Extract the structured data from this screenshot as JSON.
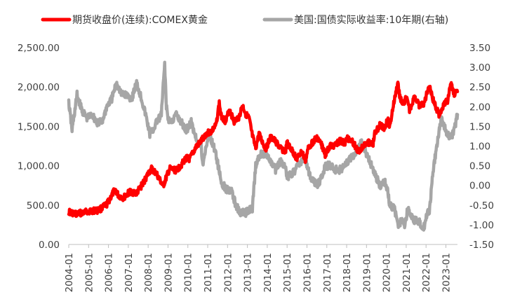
{
  "chart_data": {
    "type": "line",
    "grid": false,
    "legend_position": "top",
    "x_ticks": [
      "2004-01",
      "2005-01",
      "2006-01",
      "2007-01",
      "2008-01",
      "2009-01",
      "2010-01",
      "2011-01",
      "2012-01",
      "2013-01",
      "2014-01",
      "2015-01",
      "2016-01",
      "2017-01",
      "2018-01",
      "2019-01",
      "2020-01",
      "2021-01",
      "2022-01",
      "2023-01"
    ],
    "x_range": [
      "2004-01",
      "2023-08"
    ],
    "y_left": {
      "ylim": [
        0,
        2500
      ],
      "ticks": [
        "0.00",
        "500.00",
        "1,000.00",
        "1,500.00",
        "2,000.00",
        "2,500.00"
      ]
    },
    "y_right": {
      "ylim": [
        -1.5,
        3.5
      ],
      "ticks": [
        "-1.50",
        "-1.00",
        "-0.50",
        "0.00",
        "0.50",
        "1.00",
        "1.50",
        "2.00",
        "2.50",
        "3.00",
        "3.50"
      ]
    },
    "series": [
      {
        "name": "期货收盘价(连续):COMEX黄金",
        "axis": "left",
        "color": "#ff0000",
        "points": [
          [
            "2004-01",
            415
          ],
          [
            "2004-05",
            385
          ],
          [
            "2004-09",
            405
          ],
          [
            "2005-01",
            425
          ],
          [
            "2005-06",
            430
          ],
          [
            "2005-09",
            460
          ],
          [
            "2005-12",
            510
          ],
          [
            "2006-05",
            700
          ],
          [
            "2006-07",
            620
          ],
          [
            "2006-10",
            590
          ],
          [
            "2007-02",
            670
          ],
          [
            "2007-06",
            650
          ],
          [
            "2007-10",
            780
          ],
          [
            "2008-01",
            900
          ],
          [
            "2008-03",
            960
          ],
          [
            "2008-06",
            900
          ],
          [
            "2008-10",
            740
          ],
          [
            "2009-02",
            960
          ],
          [
            "2009-06",
            940
          ],
          [
            "2009-09",
            1010
          ],
          [
            "2009-12",
            1100
          ],
          [
            "2010-02",
            1080
          ],
          [
            "2010-06",
            1240
          ],
          [
            "2010-09",
            1310
          ],
          [
            "2010-12",
            1410
          ],
          [
            "2011-03",
            1430
          ],
          [
            "2011-06",
            1510
          ],
          [
            "2011-08",
            1800
          ],
          [
            "2011-09",
            1640
          ],
          [
            "2011-12",
            1560
          ],
          [
            "2012-02",
            1720
          ],
          [
            "2012-05",
            1560
          ],
          [
            "2012-08",
            1620
          ],
          [
            "2012-10",
            1770
          ],
          [
            "2012-12",
            1660
          ],
          [
            "2013-02",
            1600
          ],
          [
            "2013-04",
            1380
          ],
          [
            "2013-06",
            1220
          ],
          [
            "2013-08",
            1400
          ],
          [
            "2013-12",
            1210
          ],
          [
            "2014-03",
            1360
          ],
          [
            "2014-06",
            1310
          ],
          [
            "2014-09",
            1220
          ],
          [
            "2014-12",
            1180
          ],
          [
            "2015-01",
            1290
          ],
          [
            "2015-04",
            1190
          ],
          [
            "2015-07",
            1090
          ],
          [
            "2015-10",
            1180
          ],
          [
            "2015-12",
            1060
          ],
          [
            "2016-02",
            1240
          ],
          [
            "2016-07",
            1360
          ],
          [
            "2016-10",
            1260
          ],
          [
            "2016-12",
            1140
          ],
          [
            "2017-03",
            1250
          ],
          [
            "2017-06",
            1260
          ],
          [
            "2017-09",
            1320
          ],
          [
            "2017-12",
            1280
          ],
          [
            "2018-01",
            1350
          ],
          [
            "2018-04",
            1330
          ],
          [
            "2018-08",
            1180
          ],
          [
            "2018-10",
            1230
          ],
          [
            "2019-01",
            1300
          ],
          [
            "2019-05",
            1280
          ],
          [
            "2019-06",
            1410
          ],
          [
            "2019-09",
            1510
          ],
          [
            "2019-12",
            1480
          ],
          [
            "2020-02",
            1600
          ],
          [
            "2020-03",
            1480
          ],
          [
            "2020-05",
            1740
          ],
          [
            "2020-08",
            2060
          ],
          [
            "2020-09",
            1890
          ],
          [
            "2020-11",
            1770
          ],
          [
            "2021-01",
            1870
          ],
          [
            "2021-03",
            1700
          ],
          [
            "2021-06",
            1880
          ],
          [
            "2021-09",
            1750
          ],
          [
            "2021-12",
            1800
          ],
          [
            "2022-03",
            2040
          ],
          [
            "2022-05",
            1850
          ],
          [
            "2022-09",
            1640
          ],
          [
            "2022-11",
            1750
          ],
          [
            "2023-02",
            1830
          ],
          [
            "2023-04",
            2040
          ],
          [
            "2023-06",
            1920
          ],
          [
            "2023-08",
            1940
          ]
        ]
      },
      {
        "name": "美国:国债实际收益率:10年期(右轴)",
        "axis": "right",
        "color": "#a6a6a6",
        "points": [
          [
            "2004-01",
            2.1
          ],
          [
            "2004-03",
            1.4
          ],
          [
            "2004-06",
            2.3
          ],
          [
            "2004-09",
            1.9
          ],
          [
            "2004-12",
            1.7
          ],
          [
            "2005-03",
            1.8
          ],
          [
            "2005-06",
            1.6
          ],
          [
            "2005-09",
            1.6
          ],
          [
            "2005-12",
            2.0
          ],
          [
            "2006-03",
            2.2
          ],
          [
            "2006-06",
            2.6
          ],
          [
            "2006-09",
            2.3
          ],
          [
            "2006-12",
            2.3
          ],
          [
            "2007-03",
            2.2
          ],
          [
            "2007-06",
            2.6
          ],
          [
            "2007-09",
            2.2
          ],
          [
            "2007-12",
            1.7
          ],
          [
            "2008-02",
            1.3
          ],
          [
            "2008-04",
            1.4
          ],
          [
            "2008-06",
            1.6
          ],
          [
            "2008-09",
            1.8
          ],
          [
            "2008-11",
            3.1
          ],
          [
            "2008-12",
            2.0
          ],
          [
            "2009-01",
            1.7
          ],
          [
            "2009-03",
            1.6
          ],
          [
            "2009-06",
            1.8
          ],
          [
            "2009-09",
            1.6
          ],
          [
            "2009-12",
            1.4
          ],
          [
            "2010-03",
            1.6
          ],
          [
            "2010-06",
            1.2
          ],
          [
            "2010-09",
            1.0
          ],
          [
            "2010-10",
            0.5
          ],
          [
            "2010-12",
            1.0
          ],
          [
            "2011-02",
            1.3
          ],
          [
            "2011-06",
            0.8
          ],
          [
            "2011-09",
            0.1
          ],
          [
            "2011-12",
            -0.1
          ],
          [
            "2012-03",
            -0.1
          ],
          [
            "2012-06",
            -0.5
          ],
          [
            "2012-09",
            -0.7
          ],
          [
            "2012-12",
            -0.7
          ],
          [
            "2013-02",
            -0.6
          ],
          [
            "2013-04",
            -0.6
          ],
          [
            "2013-06",
            0.5
          ],
          [
            "2013-09",
            0.8
          ],
          [
            "2013-12",
            0.8
          ],
          [
            "2014-03",
            0.6
          ],
          [
            "2014-06",
            0.4
          ],
          [
            "2014-09",
            0.6
          ],
          [
            "2014-12",
            0.5
          ],
          [
            "2015-01",
            0.2
          ],
          [
            "2015-06",
            0.4
          ],
          [
            "2015-09",
            0.6
          ],
          [
            "2015-12",
            0.7
          ],
          [
            "2016-03",
            0.2
          ],
          [
            "2016-07",
            0.0
          ],
          [
            "2016-10",
            0.2
          ],
          [
            "2016-12",
            0.5
          ],
          [
            "2017-03",
            0.5
          ],
          [
            "2017-06",
            0.4
          ],
          [
            "2017-09",
            0.4
          ],
          [
            "2017-12",
            0.5
          ],
          [
            "2018-03",
            0.7
          ],
          [
            "2018-06",
            0.8
          ],
          [
            "2018-10",
            1.1
          ],
          [
            "2018-12",
            0.9
          ],
          [
            "2019-03",
            0.6
          ],
          [
            "2019-06",
            0.3
          ],
          [
            "2019-09",
            0.0
          ],
          [
            "2019-12",
            0.1
          ],
          [
            "2020-02",
            -0.2
          ],
          [
            "2020-03",
            -0.5
          ],
          [
            "2020-06",
            -0.6
          ],
          [
            "2020-08",
            -1.0
          ],
          [
            "2020-10",
            -0.9
          ],
          [
            "2020-12",
            -1.0
          ],
          [
            "2021-02",
            -0.6
          ],
          [
            "2021-03",
            -0.7
          ],
          [
            "2021-06",
            -0.9
          ],
          [
            "2021-09",
            -0.9
          ],
          [
            "2021-11",
            -1.1
          ],
          [
            "2021-12",
            -1.0
          ],
          [
            "2022-02",
            -0.6
          ],
          [
            "2022-03",
            -0.7
          ],
          [
            "2022-05",
            0.3
          ],
          [
            "2022-06",
            0.6
          ],
          [
            "2022-09",
            1.4
          ],
          [
            "2022-10",
            1.7
          ],
          [
            "2022-12",
            1.5
          ],
          [
            "2023-02",
            1.3
          ],
          [
            "2023-04",
            1.2
          ],
          [
            "2023-06",
            1.4
          ],
          [
            "2023-08",
            1.8
          ]
        ]
      }
    ]
  }
}
